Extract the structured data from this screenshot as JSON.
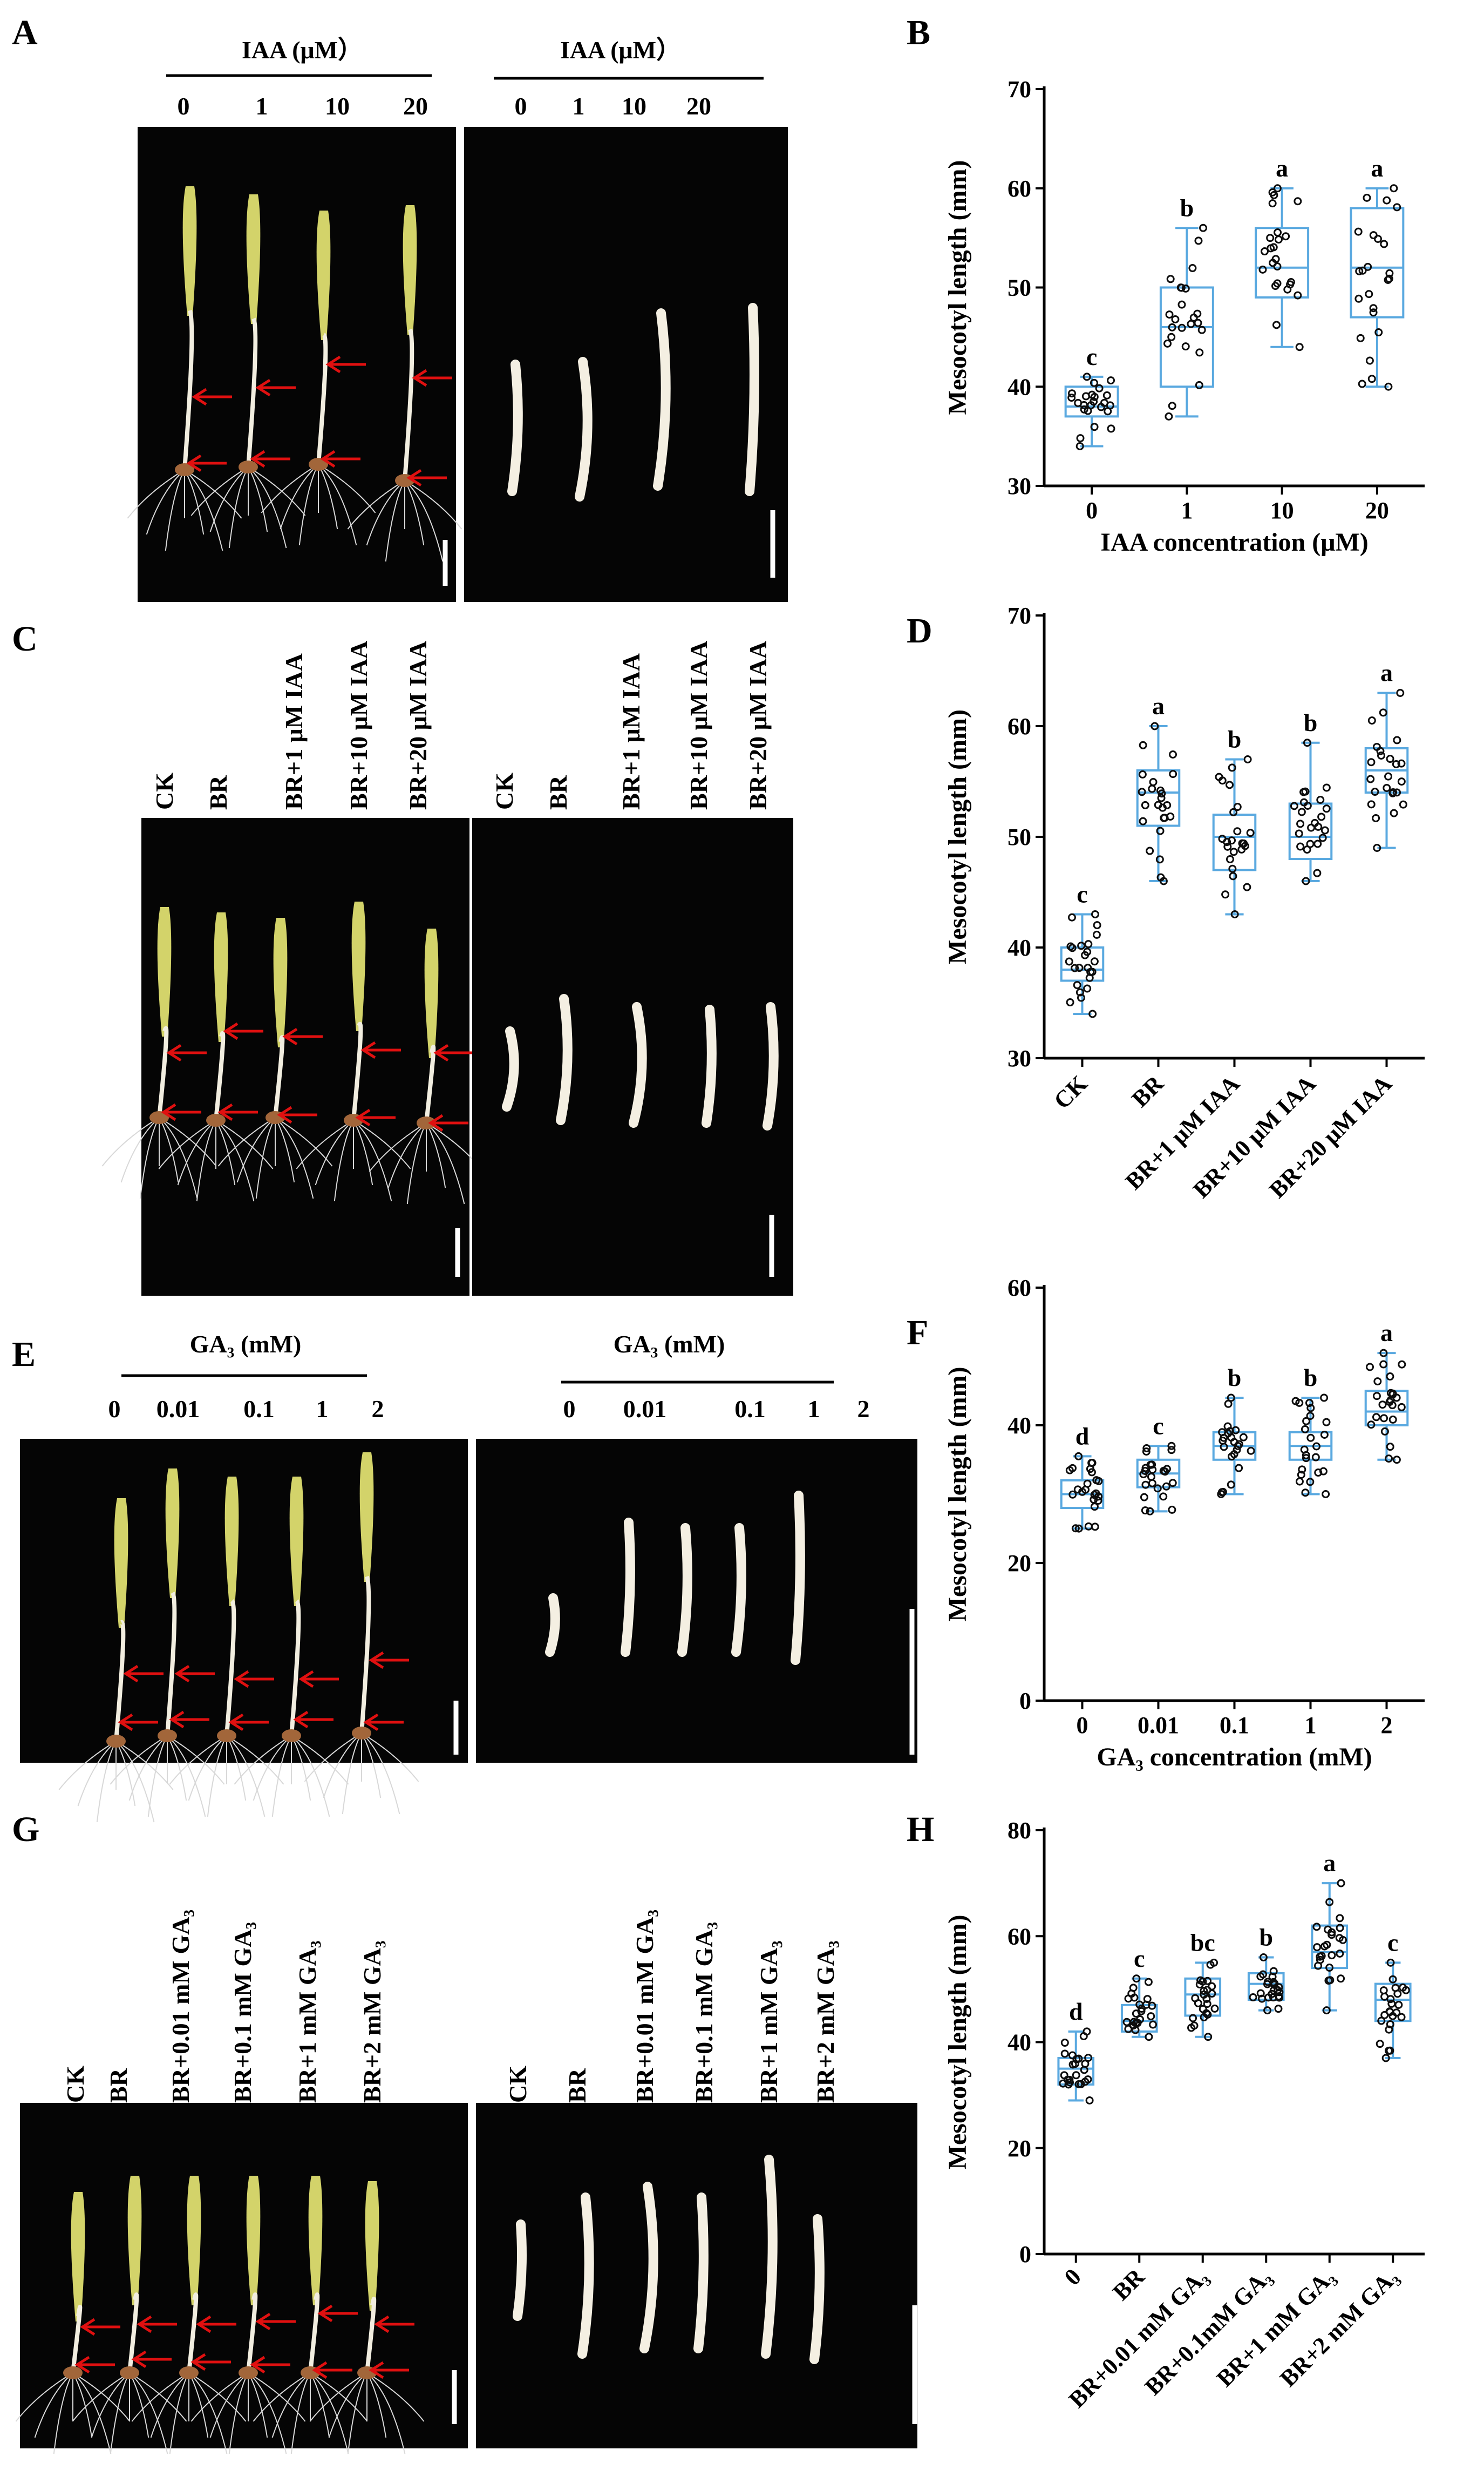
{
  "colors": {
    "box": "#5aa9e0",
    "dot": "#0d0d0d",
    "arrow": "#e01010",
    "photo_bg": "#050505",
    "shoot": "#d3d36a",
    "stem": "#f2eee0",
    "root": "#d8d8d8"
  },
  "panels": {
    "A": "A",
    "B": "B",
    "C": "C",
    "D": "D",
    "E": "E",
    "F": "F",
    "G": "G",
    "H": "H"
  },
  "photo_headers": {
    "A": {
      "title": "IAA (μM）",
      "ticks": [
        "0",
        "1",
        "10",
        "20"
      ]
    },
    "A2": {
      "title": "IAA (μM）",
      "ticks": [
        "0",
        "1",
        "10",
        "20"
      ]
    },
    "C": {
      "ticks": [
        "CK",
        "BR",
        "BR+1  μM IAA",
        "BR+10  μM IAA",
        "BR+20  μM IAA"
      ]
    },
    "C2": {
      "ticks": [
        "CK",
        "BR",
        "BR+1  μM IAA",
        "BR+10  μM IAA",
        "BR+20  μM IAA"
      ]
    },
    "E": {
      "title": "GA₃  (mM)",
      "ticks": [
        "0",
        "0.01",
        "0.1",
        "1",
        "2"
      ]
    },
    "E2": {
      "title": "GA₃  (mM)",
      "ticks": [
        "0",
        "0.01",
        "0.1",
        "1",
        "2"
      ]
    },
    "G": {
      "ticks": [
        "CK",
        "BR",
        "BR+0.01 mM GA₃",
        "BR+0.1 mM GA₃",
        "BR+1 mM GA₃",
        "BR+2 mM GA₃"
      ]
    },
    "G2": {
      "ticks": [
        "CK",
        "BR",
        "BR+0.01 mM GA₃",
        "BR+0.1 mM GA₃",
        "BR+1 mM GA₃",
        "BR+2 mM GA₃"
      ]
    }
  },
  "chart_data": [
    {
      "id": "B",
      "type": "box",
      "ylabel": "Mesocotyl length (mm)",
      "xlabel": "IAA concentration (μM)",
      "ylim": [
        30,
        70
      ],
      "yticks": [
        30,
        40,
        50,
        60,
        70
      ],
      "categories": [
        "0",
        "1",
        "10",
        "20"
      ],
      "boxes": [
        {
          "min": 34,
          "q1": 37,
          "median": 38,
          "q3": 40,
          "max": 41,
          "sig": "c"
        },
        {
          "min": 37,
          "q1": 40,
          "median": 46,
          "q3": 50,
          "max": 56,
          "sig": "b"
        },
        {
          "min": 44,
          "q1": 49,
          "median": 52,
          "q3": 56,
          "max": 60,
          "sig": "a"
        },
        {
          "min": 40,
          "q1": 47,
          "median": 52,
          "q3": 58,
          "max": 60,
          "sig": "a"
        }
      ]
    },
    {
      "id": "D",
      "type": "box",
      "ylabel": "Mesocotyl length (mm)",
      "xlabel": "",
      "ylim": [
        30,
        70
      ],
      "yticks": [
        30,
        40,
        50,
        60,
        70
      ],
      "categories": [
        "CK",
        "BR",
        "BR+1 μM IAA",
        "BR+10 μM IAA",
        "BR+20 μM IAA"
      ],
      "boxes": [
        {
          "min": 34,
          "q1": 37,
          "median": 38,
          "q3": 40,
          "max": 43,
          "sig": "c"
        },
        {
          "min": 46,
          "q1": 51,
          "median": 54,
          "q3": 56,
          "max": 60,
          "sig": "a"
        },
        {
          "min": 43,
          "q1": 47,
          "median": 50,
          "q3": 52,
          "max": 57,
          "sig": "b"
        },
        {
          "min": 46,
          "q1": 48,
          "median": 50,
          "q3": 53,
          "max": 58.5,
          "sig": "b"
        },
        {
          "min": 49,
          "q1": 54,
          "median": 56,
          "q3": 58,
          "max": 63,
          "sig": "a"
        }
      ]
    },
    {
      "id": "F",
      "type": "box",
      "ylabel": "Mesocotyl length (mm)",
      "xlabel": "GA₃ concentration (mM)",
      "ylim": [
        0,
        60
      ],
      "yticks": [
        0,
        20,
        40,
        60
      ],
      "categories": [
        "0",
        "0.01",
        "0.1",
        "1",
        "2"
      ],
      "boxes": [
        {
          "min": 25,
          "q1": 28,
          "median": 30,
          "q3": 32,
          "max": 35.5,
          "sig": "d"
        },
        {
          "min": 27.5,
          "q1": 31,
          "median": 33,
          "q3": 35,
          "max": 37,
          "sig": "c"
        },
        {
          "min": 30,
          "q1": 35,
          "median": 37,
          "q3": 39,
          "max": 44,
          "sig": "b"
        },
        {
          "min": 30,
          "q1": 35,
          "median": 37,
          "q3": 39,
          "max": 44,
          "sig": "b"
        },
        {
          "min": 35,
          "q1": 40,
          "median": 42,
          "q3": 45,
          "max": 50.5,
          "sig": "a"
        }
      ]
    },
    {
      "id": "H",
      "type": "box",
      "ylabel": "Mesocotyl length (mm)",
      "xlabel": "",
      "ylim": [
        0,
        80
      ],
      "yticks": [
        0,
        20,
        40,
        60,
        80
      ],
      "categories": [
        "0",
        "BR",
        "BR+0.01 mM GA₃",
        "BR+0.1mM GA₃",
        "BR+1 mM GA₃",
        "BR+2 mM GA₃"
      ],
      "boxes": [
        {
          "min": 29,
          "q1": 32,
          "median": 35,
          "q3": 37,
          "max": 42,
          "sig": "d"
        },
        {
          "min": 41,
          "q1": 42,
          "median": 44,
          "q3": 47,
          "max": 52,
          "sig": "c"
        },
        {
          "min": 41,
          "q1": 45,
          "median": 49,
          "q3": 52,
          "max": 55,
          "sig": "bc"
        },
        {
          "min": 46,
          "q1": 48,
          "median": 51,
          "q3": 53,
          "max": 56,
          "sig": "b"
        },
        {
          "min": 46,
          "q1": 54,
          "median": 57,
          "q3": 62,
          "max": 70,
          "sig": "a"
        },
        {
          "min": 37,
          "q1": 44,
          "median": 48,
          "q3": 51,
          "max": 55,
          "sig": "c"
        }
      ]
    }
  ]
}
